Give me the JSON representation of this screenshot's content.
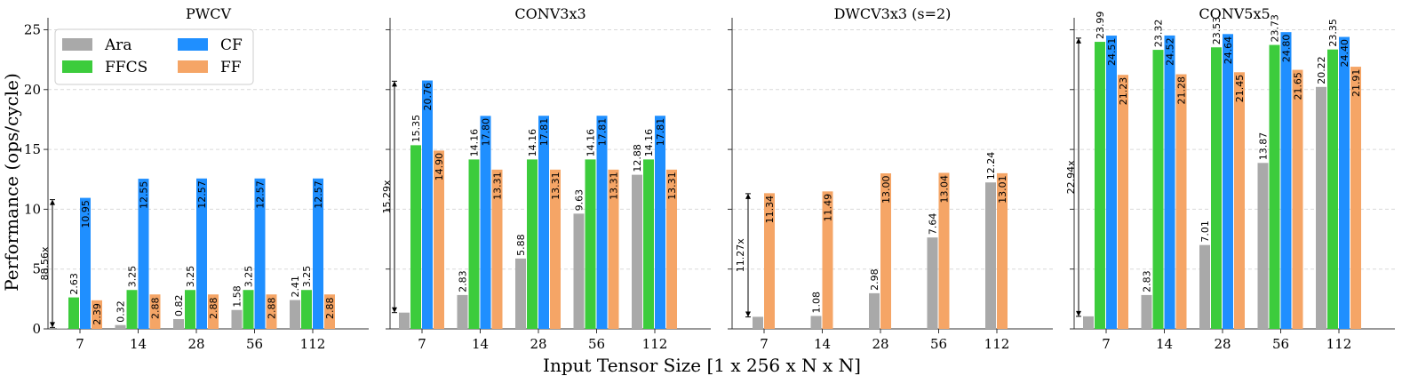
{
  "chart_data": {
    "type": "bar",
    "ylabel": "Performance (ops/cycle)",
    "xlabel": "Input Tensor Size [1 x 256 x N x N]",
    "ylim": [
      0,
      26
    ],
    "yticks": [
      0,
      5,
      10,
      15,
      20,
      25
    ],
    "categories": [
      "7",
      "14",
      "28",
      "56",
      "112"
    ],
    "series_order": [
      "Ara",
      "FFCS",
      "CF",
      "FF"
    ],
    "colors": {
      "Ara": "#a9a9a9",
      "FFCS": "#3ccc3c",
      "CF": "#1f8fff",
      "FF": "#f5a566"
    },
    "legend": {
      "entries": [
        {
          "name": "Ara",
          "color": "#a9a9a9"
        },
        {
          "name": "FFCS",
          "color": "#3ccc3c"
        },
        {
          "name": "CF",
          "color": "#1f8fff"
        },
        {
          "name": "FF",
          "color": "#f5a566"
        }
      ],
      "placement": "top-left of first panel"
    },
    "panels": [
      {
        "title": "PWCV",
        "series": [
          {
            "name": "Ara",
            "values": [
              0.03,
              0.32,
              0.82,
              1.58,
              2.41
            ],
            "labels": [
              null,
              "0.32",
              "0.82",
              "1.58",
              "2.41"
            ]
          },
          {
            "name": "FFCS",
            "values": [
              2.63,
              3.25,
              3.25,
              3.25,
              3.25
            ],
            "labels": [
              "2.63",
              "3.25",
              "3.25",
              "3.25",
              "3.25"
            ]
          },
          {
            "name": "CF",
            "values": [
              10.95,
              12.55,
              12.57,
              12.57,
              12.57
            ],
            "labels": [
              "10.95",
              "12.55",
              "12.57",
              "12.57",
              "12.57"
            ]
          },
          {
            "name": "FF",
            "values": [
              2.39,
              2.88,
              2.88,
              2.88,
              2.88
            ],
            "labels": [
              "2.39",
              "2.88",
              "2.88",
              "2.88",
              "2.88"
            ]
          }
        ],
        "annotation": {
          "text": "88.56x",
          "category": "7",
          "from": 0.12,
          "to": 10.8
        }
      },
      {
        "title": "CONV3x3",
        "series": [
          {
            "name": "Ara",
            "values": [
              1.36,
              2.83,
              5.88,
              9.63,
              12.88
            ],
            "labels": [
              null,
              "2.83",
              "5.88",
              "9.63",
              "12.88"
            ]
          },
          {
            "name": "FFCS",
            "values": [
              15.35,
              14.16,
              14.16,
              14.16,
              14.16
            ],
            "labels": [
              "15.35",
              "14.16",
              "14.16",
              "14.16",
              "14.16"
            ]
          },
          {
            "name": "CF",
            "values": [
              20.76,
              17.8,
              17.81,
              17.81,
              17.81
            ],
            "labels": [
              "20.76",
              "17.80",
              "17.81",
              "17.81",
              "17.81"
            ]
          },
          {
            "name": "FF",
            "values": [
              14.9,
              13.31,
              13.31,
              13.31,
              13.31
            ],
            "labels": [
              "14.90",
              "13.31",
              "13.31",
              "13.31",
              "13.31"
            ]
          }
        ],
        "annotation": {
          "text": "15.29x",
          "category": "7",
          "from": 1.36,
          "to": 20.7
        }
      },
      {
        "title": "DWCV3x3 (s=2)",
        "series": [
          {
            "name": "Ara",
            "values": [
              1.01,
              1.08,
              2.98,
              7.64,
              12.24
            ],
            "labels": [
              null,
              "1.08",
              "2.98",
              "7.64",
              "12.24"
            ]
          },
          {
            "name": "FF",
            "values": [
              11.34,
              11.49,
              13.0,
              13.04,
              13.01
            ],
            "labels": [
              "11.34",
              "11.49",
              "13.00",
              "13.04",
              "13.01"
            ]
          }
        ],
        "annotation": {
          "text": "11.27x",
          "category": "7",
          "from": 1.0,
          "to": 11.3
        }
      },
      {
        "title": "CONV5x5",
        "series": [
          {
            "name": "Ara",
            "values": [
              1.05,
              2.83,
              7.01,
              13.87,
              20.22
            ],
            "labels": [
              null,
              "2.83",
              "7.01",
              "13.87",
              "20.22"
            ]
          },
          {
            "name": "FFCS",
            "values": [
              23.99,
              23.32,
              23.53,
              23.73,
              23.35
            ],
            "labels": [
              "23.99",
              "23.32",
              "23.53",
              "23.73",
              "23.35"
            ]
          },
          {
            "name": "CF",
            "values": [
              24.51,
              24.52,
              24.64,
              24.8,
              24.4
            ],
            "labels": [
              "24.51",
              "24.52",
              "24.64",
              "24.80",
              "24.40"
            ]
          },
          {
            "name": "FF",
            "values": [
              21.23,
              21.28,
              21.45,
              21.65,
              21.91
            ],
            "labels": [
              "21.23",
              "21.28",
              "21.45",
              "21.65",
              "21.91"
            ]
          }
        ],
        "annotation": {
          "text": "22.94x",
          "category": "7",
          "from": 1.05,
          "to": 24.3
        }
      }
    ]
  }
}
